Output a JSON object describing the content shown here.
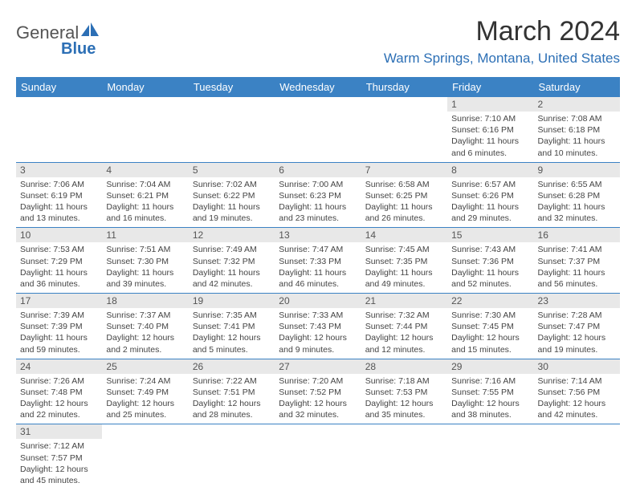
{
  "logo": {
    "text_a": "General",
    "text_b": "Blue",
    "brand_color": "#2c6fb5"
  },
  "title": "March 2024",
  "location": "Warm Springs, Montana, United States",
  "weekday_headers": [
    "Sunday",
    "Monday",
    "Tuesday",
    "Wednesday",
    "Thursday",
    "Friday",
    "Saturday"
  ],
  "style": {
    "header_bg": "#3b82c4",
    "header_fg": "#ffffff",
    "daynum_bg": "#e8e8e8",
    "cell_border": "#3b82c4",
    "text_color": "#444444",
    "body_fontsize": 10.5,
    "header_fontsize": 13,
    "title_fontsize": 34,
    "location_fontsize": 17
  },
  "grid": [
    [
      null,
      null,
      null,
      null,
      null,
      {
        "n": "1",
        "sr": "7:10 AM",
        "ss": "6:16 PM",
        "dl": "11 hours and 6 minutes."
      },
      {
        "n": "2",
        "sr": "7:08 AM",
        "ss": "6:18 PM",
        "dl": "11 hours and 10 minutes."
      }
    ],
    [
      {
        "n": "3",
        "sr": "7:06 AM",
        "ss": "6:19 PM",
        "dl": "11 hours and 13 minutes."
      },
      {
        "n": "4",
        "sr": "7:04 AM",
        "ss": "6:21 PM",
        "dl": "11 hours and 16 minutes."
      },
      {
        "n": "5",
        "sr": "7:02 AM",
        "ss": "6:22 PM",
        "dl": "11 hours and 19 minutes."
      },
      {
        "n": "6",
        "sr": "7:00 AM",
        "ss": "6:23 PM",
        "dl": "11 hours and 23 minutes."
      },
      {
        "n": "7",
        "sr": "6:58 AM",
        "ss": "6:25 PM",
        "dl": "11 hours and 26 minutes."
      },
      {
        "n": "8",
        "sr": "6:57 AM",
        "ss": "6:26 PM",
        "dl": "11 hours and 29 minutes."
      },
      {
        "n": "9",
        "sr": "6:55 AM",
        "ss": "6:28 PM",
        "dl": "11 hours and 32 minutes."
      }
    ],
    [
      {
        "n": "10",
        "sr": "7:53 AM",
        "ss": "7:29 PM",
        "dl": "11 hours and 36 minutes."
      },
      {
        "n": "11",
        "sr": "7:51 AM",
        "ss": "7:30 PM",
        "dl": "11 hours and 39 minutes."
      },
      {
        "n": "12",
        "sr": "7:49 AM",
        "ss": "7:32 PM",
        "dl": "11 hours and 42 minutes."
      },
      {
        "n": "13",
        "sr": "7:47 AM",
        "ss": "7:33 PM",
        "dl": "11 hours and 46 minutes."
      },
      {
        "n": "14",
        "sr": "7:45 AM",
        "ss": "7:35 PM",
        "dl": "11 hours and 49 minutes."
      },
      {
        "n": "15",
        "sr": "7:43 AM",
        "ss": "7:36 PM",
        "dl": "11 hours and 52 minutes."
      },
      {
        "n": "16",
        "sr": "7:41 AM",
        "ss": "7:37 PM",
        "dl": "11 hours and 56 minutes."
      }
    ],
    [
      {
        "n": "17",
        "sr": "7:39 AM",
        "ss": "7:39 PM",
        "dl": "11 hours and 59 minutes."
      },
      {
        "n": "18",
        "sr": "7:37 AM",
        "ss": "7:40 PM",
        "dl": "12 hours and 2 minutes."
      },
      {
        "n": "19",
        "sr": "7:35 AM",
        "ss": "7:41 PM",
        "dl": "12 hours and 5 minutes."
      },
      {
        "n": "20",
        "sr": "7:33 AM",
        "ss": "7:43 PM",
        "dl": "12 hours and 9 minutes."
      },
      {
        "n": "21",
        "sr": "7:32 AM",
        "ss": "7:44 PM",
        "dl": "12 hours and 12 minutes."
      },
      {
        "n": "22",
        "sr": "7:30 AM",
        "ss": "7:45 PM",
        "dl": "12 hours and 15 minutes."
      },
      {
        "n": "23",
        "sr": "7:28 AM",
        "ss": "7:47 PM",
        "dl": "12 hours and 19 minutes."
      }
    ],
    [
      {
        "n": "24",
        "sr": "7:26 AM",
        "ss": "7:48 PM",
        "dl": "12 hours and 22 minutes."
      },
      {
        "n": "25",
        "sr": "7:24 AM",
        "ss": "7:49 PM",
        "dl": "12 hours and 25 minutes."
      },
      {
        "n": "26",
        "sr": "7:22 AM",
        "ss": "7:51 PM",
        "dl": "12 hours and 28 minutes."
      },
      {
        "n": "27",
        "sr": "7:20 AM",
        "ss": "7:52 PM",
        "dl": "12 hours and 32 minutes."
      },
      {
        "n": "28",
        "sr": "7:18 AM",
        "ss": "7:53 PM",
        "dl": "12 hours and 35 minutes."
      },
      {
        "n": "29",
        "sr": "7:16 AM",
        "ss": "7:55 PM",
        "dl": "12 hours and 38 minutes."
      },
      {
        "n": "30",
        "sr": "7:14 AM",
        "ss": "7:56 PM",
        "dl": "12 hours and 42 minutes."
      }
    ],
    [
      {
        "n": "31",
        "sr": "7:12 AM",
        "ss": "7:57 PM",
        "dl": "12 hours and 45 minutes."
      },
      null,
      null,
      null,
      null,
      null,
      null
    ]
  ],
  "labels": {
    "sunrise": "Sunrise:",
    "sunset": "Sunset:",
    "daylight": "Daylight:"
  }
}
